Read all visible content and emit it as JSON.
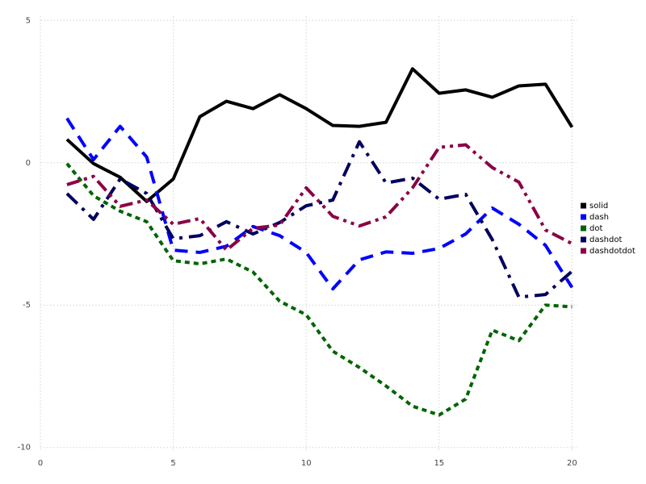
{
  "chart_data": {
    "type": "line",
    "x": [
      1,
      2,
      3,
      4,
      5,
      6,
      7,
      8,
      9,
      10,
      11,
      12,
      13,
      14,
      15,
      16,
      17,
      18,
      19,
      20
    ],
    "series": [
      {
        "name": "solid",
        "color": "#000000",
        "dash": "solid",
        "values": [
          0.82,
          -0.03,
          -0.51,
          -1.36,
          -0.57,
          1.62,
          2.16,
          1.9,
          2.39,
          1.9,
          1.31,
          1.28,
          1.42,
          3.3,
          2.44,
          2.56,
          2.3,
          2.7,
          2.76,
          1.25
        ]
      },
      {
        "name": "dash",
        "color": "#0000ff",
        "dash": "dash",
        "values": [
          1.56,
          0.11,
          1.28,
          0.2,
          -3.07,
          -3.15,
          -2.93,
          -2.24,
          -2.56,
          -3.15,
          -4.43,
          -3.41,
          -3.13,
          -3.18,
          -3.01,
          -2.5,
          -1.59,
          -2.16,
          -2.9,
          -4.38
        ]
      },
      {
        "name": "dot",
        "color": "#006400",
        "dash": "dot",
        "values": [
          -0.03,
          -1.16,
          -1.7,
          -2.07,
          -3.44,
          -3.55,
          -3.38,
          -3.84,
          -4.86,
          -5.34,
          -6.62,
          -7.19,
          -7.84,
          -8.55,
          -8.86,
          -8.3,
          -5.88,
          -6.25,
          -5.0,
          -5.06
        ]
      },
      {
        "name": "dashdot",
        "color": "#00005e",
        "dash": "dashdot",
        "values": [
          -1.08,
          -1.99,
          -0.57,
          -1.08,
          -2.67,
          -2.56,
          -2.07,
          -2.5,
          -2.1,
          -1.51,
          -1.31,
          0.74,
          -0.71,
          -0.54,
          -1.28,
          -1.11,
          -2.7,
          -4.72,
          -4.63,
          -3.81
        ]
      },
      {
        "name": "dashdotdot",
        "color": "#8b0045",
        "dash": "dashdotdot",
        "values": [
          -0.77,
          -0.48,
          -1.53,
          -1.31,
          -2.16,
          -1.96,
          -3.07,
          -2.3,
          -2.19,
          -0.88,
          -1.88,
          -2.22,
          -1.9,
          -0.88,
          0.54,
          0.63,
          -0.17,
          -0.68,
          -2.36,
          -2.84
        ]
      }
    ],
    "xlim": [
      0,
      20.2
    ],
    "xticks": [
      0,
      5,
      10,
      15,
      20
    ],
    "ylim": [
      -10.15,
      5.15
    ],
    "yticks": [
      -10,
      -5,
      0,
      5
    ],
    "grid": true,
    "legend": "right"
  }
}
